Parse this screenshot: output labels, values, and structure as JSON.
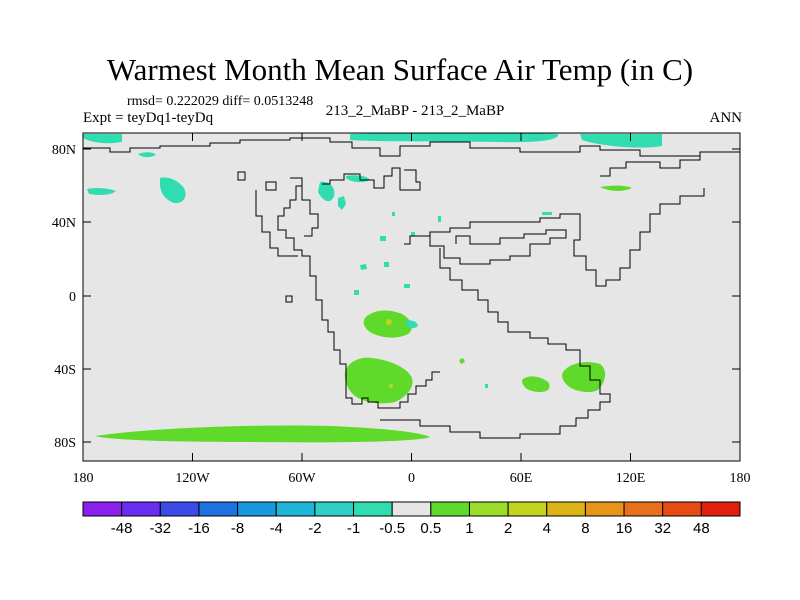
{
  "header": {
    "title": "Warmest Month Mean Surface Air Temp (in C)",
    "stats": "rmsd= 0.222029 diff= 0.0513248",
    "expt": "Expt = teyDq1-teyDq",
    "center_label": "213_2_MaBP - 213_2_MaBP",
    "season": "ANN"
  },
  "axes": {
    "lon_ticks": [
      "180",
      "120W",
      "60W",
      "0",
      "60E",
      "120E",
      "180"
    ],
    "lat_ticks": [
      "80N",
      "40N",
      "0",
      "40S",
      "80S"
    ]
  },
  "colorbar": {
    "labels": [
      "-48",
      "-32",
      "-16",
      "-8",
      "-4",
      "-2",
      "-1",
      "-0.5",
      "0.5",
      "1",
      "2",
      "4",
      "8",
      "16",
      "32",
      "48"
    ],
    "colors": [
      "#8a1ff0",
      "#6a2ef0",
      "#3a4be8",
      "#1c72e0",
      "#1898dc",
      "#1fb5d6",
      "#2fcfc5",
      "#30ddb0",
      "#e6e6e6",
      "#5fd92a",
      "#9bdc2a",
      "#c2d41e",
      "#dcb416",
      "#e6941a",
      "#e8701a",
      "#e84a14",
      "#e0200c"
    ],
    "neutral_color": "#e6e6e6"
  }
}
